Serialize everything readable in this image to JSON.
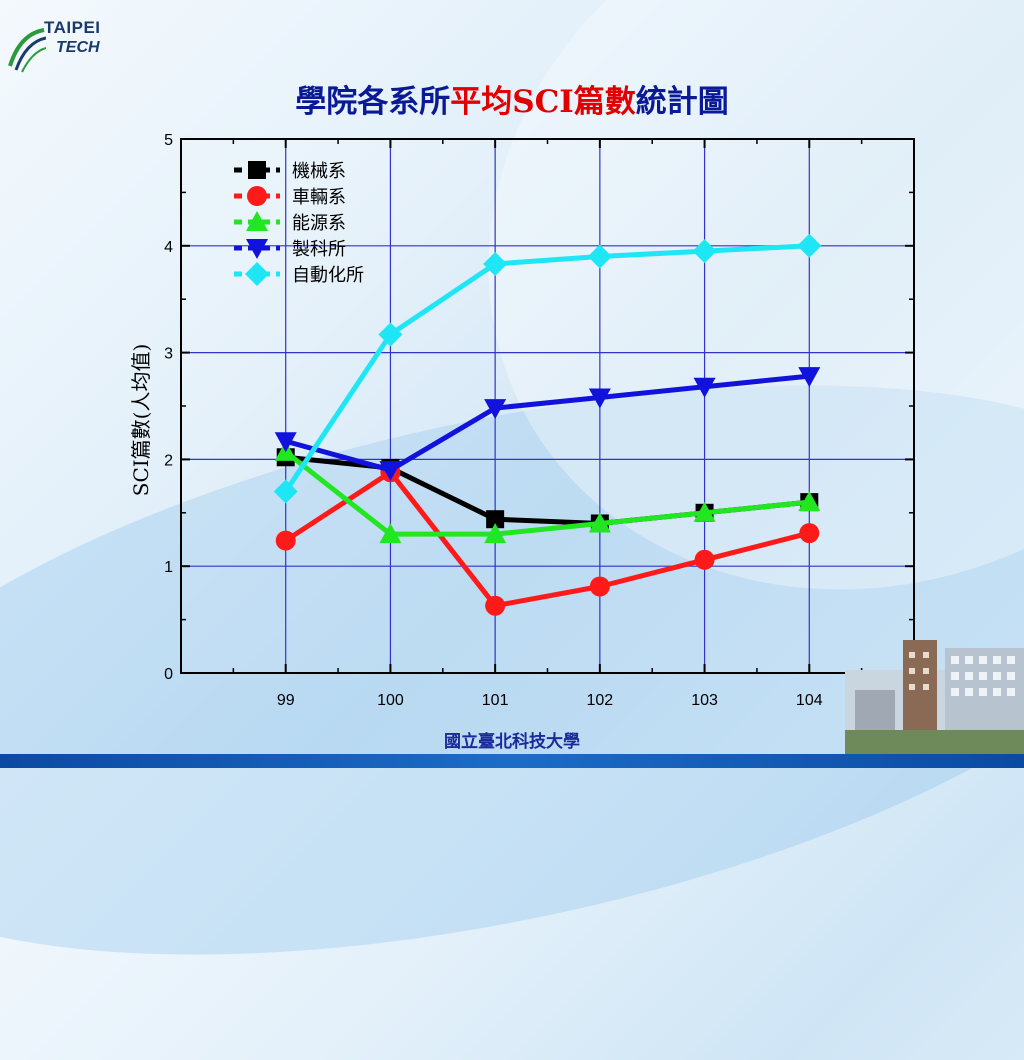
{
  "logo": {
    "line1": "TAIPEI",
    "line2": "TECH"
  },
  "title": {
    "part1": "學院各系所",
    "part2": "平均SCI篇數",
    "part3": "統計圖"
  },
  "footer": {
    "text": "國立臺北科技大學"
  },
  "colors": {
    "title_blue": "#0a1a96",
    "title_red": "#e00000",
    "footer_bar": "#1c6cc5",
    "grid": "#3333cc"
  },
  "chart_data": {
    "type": "line",
    "ylabel": "SCI篇數(人均值)",
    "xlabel": "",
    "x": [
      "99",
      "100",
      "101",
      "102",
      "103",
      "104"
    ],
    "xlim": [
      98,
      105
    ],
    "ylim": [
      0,
      5
    ],
    "yticks": [
      "0",
      "1",
      "2",
      "3",
      "4",
      "5"
    ],
    "grid": true,
    "legend_position": "top-left",
    "series": [
      {
        "name": "機械系",
        "color": "#000000",
        "marker": "square",
        "values": [
          2.02,
          1.92,
          1.44,
          1.4,
          1.5,
          1.6
        ]
      },
      {
        "name": "車輛系",
        "color": "#ff1a1a",
        "marker": "circle",
        "values": [
          1.24,
          1.88,
          0.63,
          0.81,
          1.06,
          1.31
        ]
      },
      {
        "name": "能源系",
        "color": "#22e622",
        "marker": "triangle-up",
        "values": [
          2.07,
          1.3,
          1.3,
          1.4,
          1.5,
          1.6
        ]
      },
      {
        "name": "製科所",
        "color": "#1212dd",
        "marker": "triangle-down",
        "values": [
          2.17,
          1.9,
          2.48,
          2.58,
          2.68,
          2.78
        ]
      },
      {
        "name": "自動化所",
        "color": "#1fe6f5",
        "marker": "diamond",
        "values": [
          1.7,
          3.17,
          3.83,
          3.9,
          3.95,
          4.0
        ]
      }
    ]
  }
}
